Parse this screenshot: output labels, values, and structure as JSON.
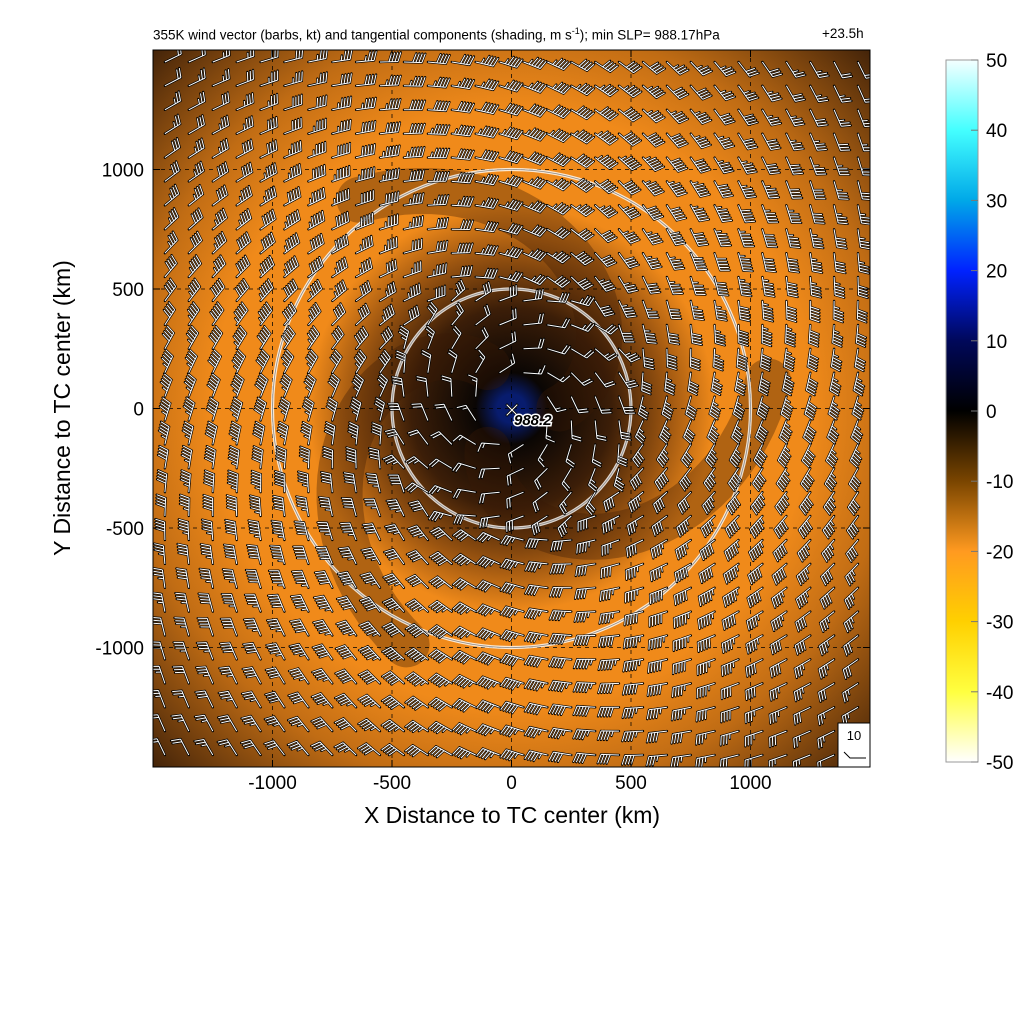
{
  "chart_data": {
    "type": "heatmap",
    "title_prefix": "355K wind vector (barbs, kt) and tangential components (shading, m s",
    "title_sup": "-1",
    "title_suffix": "); min SLP= 988.17hPa",
    "time_label": "+23.5h",
    "xlabel": "X Distance to TC center (km)",
    "ylabel": "Y Distance to TC center (km)",
    "xlim": [
      -1500,
      1500
    ],
    "ylim": [
      -1500,
      1500
    ],
    "x_ticks": [
      -1000,
      -500,
      0,
      500,
      1000
    ],
    "y_ticks": [
      -1000,
      -500,
      0,
      500,
      1000
    ],
    "grid": true,
    "center_marker": "×",
    "center_label": "988.2",
    "reference_circles_km": [
      500,
      1000
    ],
    "reference_barb_label": "10",
    "colorbar": {
      "min": -50,
      "max": 50,
      "ticks": [
        50,
        40,
        30,
        20,
        10,
        0,
        -10,
        -20,
        -30,
        -40,
        -50
      ],
      "stops": [
        {
          "value": 50,
          "color": "#f4ffff"
        },
        {
          "value": 40,
          "color": "#44ffff"
        },
        {
          "value": 30,
          "color": "#00a8e8"
        },
        {
          "value": 20,
          "color": "#0022ff"
        },
        {
          "value": 10,
          "color": "#00085a"
        },
        {
          "value": 0,
          "color": "#000000"
        },
        {
          "value": -10,
          "color": "#7a4500"
        },
        {
          "value": -20,
          "color": "#ff9a20"
        },
        {
          "value": -30,
          "color": "#ffd000"
        },
        {
          "value": -40,
          "color": "#ffff40"
        },
        {
          "value": -50,
          "color": "#ffffff"
        }
      ]
    },
    "field_colors": {
      "center": "#081c6e",
      "core": "#0a0604",
      "inner": "#3c1e08",
      "middle": "#9a5410",
      "band": "#f08a1a",
      "outer": "#c06c14",
      "corner": "#3a1e08"
    }
  }
}
